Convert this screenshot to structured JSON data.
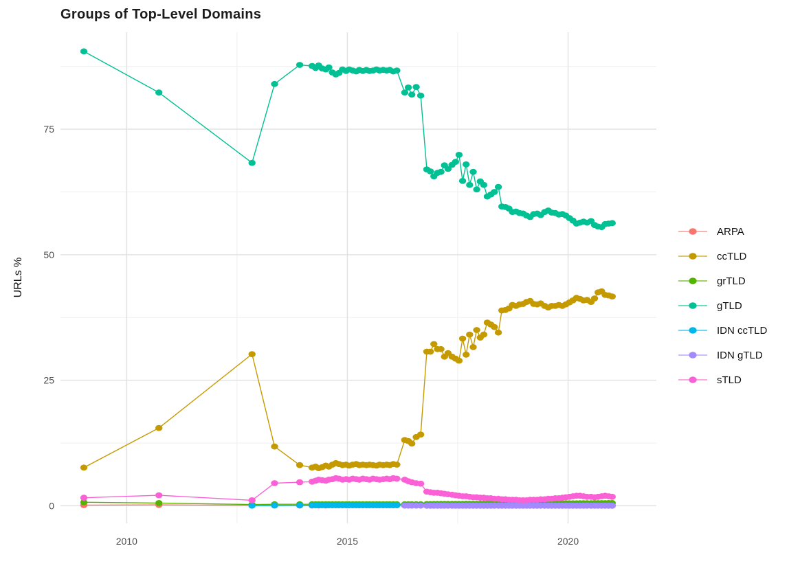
{
  "chart_data": {
    "type": "line",
    "title": "Groups of Top-Level Domains",
    "xlabel": "",
    "ylabel": "URLs %",
    "grid": true,
    "legend_position": "right",
    "xlim": [
      2008.5,
      2022.0
    ],
    "ylim": [
      -3.5,
      94.3
    ],
    "x_ticks": {
      "major": [
        2010,
        2015,
        2020
      ],
      "labels": [
        "2010",
        "2015",
        "2020"
      ],
      "minor": [
        2012.5,
        2017.5
      ]
    },
    "y_ticks": {
      "major": [
        0,
        25,
        50,
        75
      ],
      "labels": [
        "0",
        "25",
        "50",
        "75"
      ],
      "minor": [
        12.5,
        37.5,
        62.5,
        87.5
      ]
    },
    "series": [
      {
        "name": "ARPA",
        "color": "#F8766D",
        "x": [
          2009.03,
          2010.73,
          2012.84,
          2013.35,
          2013.92,
          2014.2,
          2014.35,
          2014.51
        ],
        "y": [
          0.12,
          0.18,
          0.1,
          0.08,
          0.06,
          0.05,
          0.05,
          0.05
        ]
      },
      {
        "name": "ccTLD",
        "color": "#C49A00",
        "x": [
          2009.03,
          2010.73,
          2012.84,
          2013.35,
          2013.92,
          2014.2,
          2014.28,
          2014.35,
          2014.43,
          2014.51,
          2014.58,
          2014.66,
          2014.74,
          2014.81,
          2014.89,
          2014.97,
          2015.04,
          2015.12,
          2015.2,
          2015.27,
          2015.35,
          2015.43,
          2015.5,
          2015.58,
          2015.66,
          2015.73,
          2015.81,
          2015.89,
          2015.96,
          2016.04,
          2016.12,
          2016.3,
          2016.38,
          2016.46,
          2016.56,
          2016.66,
          2016.8,
          2016.88,
          2016.96,
          2017.04,
          2017.12,
          2017.2,
          2017.28,
          2017.37,
          2017.45,
          2017.53,
          2017.61,
          2017.69,
          2017.77,
          2017.85,
          2017.93,
          2018.01,
          2018.09,
          2018.17,
          2018.25,
          2018.33,
          2018.42,
          2018.5,
          2018.58,
          2018.66,
          2018.74,
          2018.82,
          2018.9,
          2018.98,
          2019.06,
          2019.14,
          2019.22,
          2019.3,
          2019.38,
          2019.47,
          2019.55,
          2019.63,
          2019.71,
          2019.79,
          2019.87,
          2019.95,
          2020.03,
          2020.11,
          2020.19,
          2020.27,
          2020.35,
          2020.43,
          2020.52,
          2020.6,
          2020.68,
          2020.76,
          2020.84,
          2020.92,
          2021.0
        ],
        "y": [
          7.6,
          15.5,
          30.2,
          11.8,
          8.1,
          7.6,
          7.8,
          7.5,
          7.7,
          8.0,
          7.8,
          8.2,
          8.5,
          8.3,
          8.1,
          8.2,
          8.0,
          8.2,
          8.3,
          8.1,
          8.2,
          8.1,
          8.2,
          8.1,
          8.0,
          8.2,
          8.1,
          8.2,
          8.1,
          8.3,
          8.2,
          13.1,
          12.9,
          12.4,
          13.7,
          14.2,
          30.7,
          30.7,
          32.2,
          31.2,
          31.2,
          29.7,
          30.4,
          29.7,
          29.3,
          28.9,
          33.3,
          30.1,
          34.1,
          31.6,
          35.0,
          33.5,
          34.1,
          36.5,
          36.1,
          35.6,
          34.5,
          38.9,
          39.0,
          39.3,
          40.0,
          39.8,
          40.1,
          40.2,
          40.6,
          40.8,
          40.2,
          40.1,
          40.3,
          39.8,
          39.5,
          39.8,
          39.8,
          40.0,
          39.8,
          40.1,
          40.5,
          40.9,
          41.4,
          41.2,
          40.9,
          41.0,
          40.6,
          41.3,
          42.5,
          42.7,
          42.0,
          41.9,
          41.7
        ]
      },
      {
        "name": "grTLD",
        "color": "#53B400",
        "x": [
          2009.03,
          2010.73,
          2012.84,
          2013.35,
          2013.92,
          2014.2,
          2014.28,
          2014.35,
          2014.43,
          2014.51,
          2014.58,
          2014.66,
          2014.74,
          2014.81,
          2014.89,
          2014.97,
          2015.04,
          2015.12,
          2015.2,
          2015.27,
          2015.35,
          2015.43,
          2015.5,
          2015.58,
          2015.66,
          2015.73,
          2015.81,
          2015.89,
          2015.96,
          2016.04,
          2016.12,
          2016.3,
          2016.38,
          2016.46,
          2016.56,
          2016.66,
          2016.8,
          2016.88,
          2016.96,
          2017.04,
          2017.12,
          2017.2,
          2017.28,
          2017.37,
          2017.45,
          2017.53,
          2017.61,
          2017.69,
          2017.77,
          2017.85,
          2017.93,
          2018.01,
          2018.09,
          2018.17,
          2018.25,
          2018.33,
          2018.42,
          2018.5,
          2018.58,
          2018.66,
          2018.74,
          2018.82,
          2018.9,
          2018.98,
          2019.06,
          2019.14,
          2019.22,
          2019.3,
          2019.38,
          2019.47,
          2019.55,
          2019.63,
          2019.71,
          2019.79,
          2019.87,
          2019.95,
          2020.03,
          2020.11,
          2020.19,
          2020.27,
          2020.35,
          2020.43,
          2020.52,
          2020.6,
          2020.68,
          2020.76,
          2020.84,
          2020.92,
          2021.0
        ],
        "y": [
          0.7,
          0.55,
          0.25,
          0.3,
          0.3,
          0.3,
          0.3,
          0.3,
          0.3,
          0.3,
          0.3,
          0.3,
          0.3,
          0.3,
          0.3,
          0.3,
          0.3,
          0.3,
          0.3,
          0.3,
          0.3,
          0.3,
          0.3,
          0.3,
          0.3,
          0.3,
          0.3,
          0.3,
          0.3,
          0.3,
          0.3,
          0.3,
          0.3,
          0.3,
          0.3,
          0.3,
          0.35,
          0.35,
          0.36,
          0.36,
          0.37,
          0.37,
          0.38,
          0.38,
          0.38,
          0.39,
          0.39,
          0.4,
          0.4,
          0.4,
          0.4,
          0.41,
          0.41,
          0.42,
          0.42,
          0.42,
          0.43,
          0.43,
          0.43,
          0.44,
          0.44,
          0.44,
          0.45,
          0.45,
          0.45,
          0.46,
          0.46,
          0.46,
          0.47,
          0.47,
          0.47,
          0.48,
          0.48,
          0.48,
          0.49,
          0.49,
          0.5,
          0.5,
          0.5,
          0.51,
          0.51,
          0.52,
          0.52,
          0.53,
          0.53,
          0.54,
          0.54,
          0.55,
          0.55
        ]
      },
      {
        "name": "gTLD",
        "color": "#00C094",
        "x": [
          2009.03,
          2010.73,
          2012.84,
          2013.35,
          2013.92,
          2014.2,
          2014.28,
          2014.35,
          2014.43,
          2014.51,
          2014.58,
          2014.66,
          2014.74,
          2014.81,
          2014.89,
          2014.97,
          2015.04,
          2015.12,
          2015.2,
          2015.27,
          2015.35,
          2015.43,
          2015.5,
          2015.58,
          2015.66,
          2015.73,
          2015.81,
          2015.89,
          2015.96,
          2016.04,
          2016.12,
          2016.3,
          2016.38,
          2016.46,
          2016.56,
          2016.66,
          2016.8,
          2016.88,
          2016.96,
          2017.04,
          2017.12,
          2017.2,
          2017.28,
          2017.37,
          2017.45,
          2017.53,
          2017.61,
          2017.69,
          2017.77,
          2017.85,
          2017.93,
          2018.01,
          2018.09,
          2018.17,
          2018.25,
          2018.33,
          2018.42,
          2018.5,
          2018.58,
          2018.66,
          2018.74,
          2018.82,
          2018.9,
          2018.98,
          2019.06,
          2019.14,
          2019.22,
          2019.3,
          2019.38,
          2019.47,
          2019.55,
          2019.63,
          2019.71,
          2019.79,
          2019.87,
          2019.95,
          2020.03,
          2020.11,
          2020.19,
          2020.27,
          2020.35,
          2020.43,
          2020.52,
          2020.6,
          2020.68,
          2020.76,
          2020.84,
          2020.92,
          2021.0
        ],
        "y": [
          90.5,
          82.3,
          68.3,
          84.0,
          87.8,
          87.6,
          87.2,
          87.7,
          87.1,
          86.9,
          87.3,
          86.3,
          85.9,
          86.2,
          86.9,
          86.6,
          86.9,
          86.7,
          86.5,
          86.8,
          86.6,
          86.8,
          86.6,
          86.7,
          86.9,
          86.7,
          86.8,
          86.7,
          86.8,
          86.5,
          86.7,
          82.3,
          83.3,
          81.9,
          83.4,
          81.7,
          67.0,
          66.6,
          65.6,
          66.3,
          66.5,
          67.8,
          67.1,
          67.9,
          68.5,
          69.9,
          64.7,
          68.0,
          63.9,
          66.5,
          63.0,
          64.6,
          63.9,
          61.6,
          62.0,
          62.5,
          63.5,
          59.6,
          59.5,
          59.2,
          58.5,
          58.6,
          58.3,
          58.2,
          57.8,
          57.5,
          58.1,
          58.2,
          57.9,
          58.5,
          58.8,
          58.4,
          58.3,
          58.0,
          58.1,
          57.8,
          57.3,
          56.8,
          56.2,
          56.4,
          56.6,
          56.4,
          56.7,
          55.9,
          55.6,
          55.5,
          56.1,
          56.2,
          56.3
        ]
      },
      {
        "name": "IDN ccTLD",
        "color": "#00B6EB",
        "x": [
          2012.84,
          2013.35,
          2013.92,
          2014.2,
          2014.28,
          2014.35,
          2014.43,
          2014.51,
          2014.58,
          2014.66,
          2014.74,
          2014.81,
          2014.89,
          2014.97,
          2015.04,
          2015.12,
          2015.2,
          2015.27,
          2015.35,
          2015.43,
          2015.5,
          2015.58,
          2015.66,
          2015.73,
          2015.81,
          2015.89,
          2015.96,
          2016.04,
          2016.12,
          2016.3,
          2016.38,
          2016.46,
          2016.56,
          2016.66,
          2016.8,
          2016.88,
          2016.96,
          2017.04,
          2017.12,
          2017.2,
          2017.28,
          2017.37,
          2017.45,
          2017.53,
          2017.61,
          2017.69,
          2017.77,
          2017.85,
          2017.93,
          2018.01,
          2018.09,
          2018.17,
          2018.25,
          2018.33,
          2018.42,
          2018.5,
          2018.58,
          2018.66,
          2018.74,
          2018.82,
          2018.9,
          2018.98,
          2019.06,
          2019.14,
          2019.22,
          2019.3,
          2019.38,
          2019.47,
          2019.55,
          2019.63,
          2019.71,
          2019.79,
          2019.87,
          2019.95,
          2020.03,
          2020.11,
          2020.19,
          2020.27,
          2020.35,
          2020.43,
          2020.52,
          2020.6,
          2020.68,
          2020.76,
          2020.84,
          2020.92,
          2021.0
        ],
        "y": [
          0.03,
          0.05,
          0.08,
          0.1,
          0.1,
          0.1,
          0.1,
          0.1,
          0.1,
          0.1,
          0.1,
          0.1,
          0.1,
          0.1,
          0.1,
          0.1,
          0.1,
          0.1,
          0.1,
          0.1,
          0.1,
          0.1,
          0.1,
          0.1,
          0.1,
          0.1,
          0.1,
          0.1,
          0.1,
          0.08,
          0.08,
          0.08,
          0.08,
          0.08,
          0.05,
          0.05,
          0.05,
          0.05,
          0.05,
          0.05,
          0.05,
          0.05,
          0.05,
          0.05,
          0.05,
          0.05,
          0.05,
          0.05,
          0.05,
          0.05,
          0.05,
          0.05,
          0.05,
          0.05,
          0.05,
          0.05,
          0.05,
          0.05,
          0.05,
          0.05,
          0.05,
          0.05,
          0.05,
          0.05,
          0.05,
          0.05,
          0.05,
          0.05,
          0.05,
          0.05,
          0.05,
          0.05,
          0.05,
          0.05,
          0.05,
          0.05,
          0.05,
          0.05,
          0.05,
          0.05,
          0.05,
          0.05,
          0.05,
          0.05,
          0.05,
          0.05,
          0.05
        ]
      },
      {
        "name": "IDN gTLD",
        "color": "#A58AFF",
        "x": [
          2016.3,
          2016.38,
          2016.46,
          2016.56,
          2016.66,
          2016.8,
          2016.88,
          2016.96,
          2017.04,
          2017.12,
          2017.2,
          2017.28,
          2017.37,
          2017.45,
          2017.53,
          2017.61,
          2017.69,
          2017.77,
          2017.85,
          2017.93,
          2018.01,
          2018.09,
          2018.17,
          2018.25,
          2018.33,
          2018.42,
          2018.5,
          2018.58,
          2018.66,
          2018.74,
          2018.82,
          2018.9,
          2018.98,
          2019.06,
          2019.14,
          2019.22,
          2019.3,
          2019.38,
          2019.47,
          2019.55,
          2019.63,
          2019.71,
          2019.79,
          2019.87,
          2019.95,
          2020.03,
          2020.11,
          2020.19,
          2020.27,
          2020.35,
          2020.43,
          2020.52,
          2020.6,
          2020.68,
          2020.76,
          2020.84,
          2020.92,
          2021.0
        ],
        "y": [
          0.03,
          0.03,
          0.03,
          0.03,
          0.03,
          0.02,
          0.02,
          0.02,
          0.02,
          0.02,
          0.02,
          0.02,
          0.02,
          0.02,
          0.02,
          0.02,
          0.02,
          0.02,
          0.02,
          0.02,
          0.02,
          0.02,
          0.02,
          0.02,
          0.02,
          0.02,
          0.02,
          0.02,
          0.02,
          0.02,
          0.02,
          0.02,
          0.02,
          0.02,
          0.02,
          0.02,
          0.02,
          0.02,
          0.02,
          0.02,
          0.02,
          0.02,
          0.02,
          0.02,
          0.02,
          0.02,
          0.02,
          0.02,
          0.02,
          0.02,
          0.02,
          0.02,
          0.02,
          0.02,
          0.02,
          0.02,
          0.02,
          0.02
        ]
      },
      {
        "name": "sTLD",
        "color": "#FB61D7",
        "x": [
          2009.03,
          2010.73,
          2012.84,
          2013.35,
          2013.92,
          2014.2,
          2014.28,
          2014.35,
          2014.43,
          2014.51,
          2014.58,
          2014.66,
          2014.74,
          2014.81,
          2014.89,
          2014.97,
          2015.04,
          2015.12,
          2015.2,
          2015.27,
          2015.35,
          2015.43,
          2015.5,
          2015.58,
          2015.66,
          2015.73,
          2015.81,
          2015.89,
          2015.96,
          2016.04,
          2016.12,
          2016.3,
          2016.38,
          2016.46,
          2016.56,
          2016.66,
          2016.8,
          2016.88,
          2016.96,
          2017.04,
          2017.12,
          2017.2,
          2017.28,
          2017.37,
          2017.45,
          2017.53,
          2017.61,
          2017.69,
          2017.77,
          2017.85,
          2017.93,
          2018.01,
          2018.09,
          2018.17,
          2018.25,
          2018.33,
          2018.42,
          2018.5,
          2018.58,
          2018.66,
          2018.74,
          2018.82,
          2018.9,
          2018.98,
          2019.06,
          2019.14,
          2019.22,
          2019.3,
          2019.38,
          2019.47,
          2019.55,
          2019.63,
          2019.71,
          2019.79,
          2019.87,
          2019.95,
          2020.03,
          2020.11,
          2020.19,
          2020.27,
          2020.35,
          2020.43,
          2020.52,
          2020.6,
          2020.68,
          2020.76,
          2020.84,
          2020.92,
          2021.0
        ],
        "y": [
          1.6,
          2.1,
          1.1,
          4.5,
          4.7,
          4.8,
          5.0,
          5.2,
          5.1,
          5.0,
          5.2,
          5.3,
          5.5,
          5.4,
          5.2,
          5.3,
          5.2,
          5.4,
          5.3,
          5.2,
          5.4,
          5.3,
          5.2,
          5.4,
          5.3,
          5.2,
          5.3,
          5.4,
          5.3,
          5.5,
          5.4,
          5.2,
          4.9,
          4.7,
          4.5,
          4.4,
          2.8,
          2.7,
          2.6,
          2.6,
          2.5,
          2.4,
          2.3,
          2.2,
          2.1,
          2.0,
          1.9,
          1.9,
          1.8,
          1.7,
          1.7,
          1.6,
          1.6,
          1.5,
          1.5,
          1.4,
          1.4,
          1.3,
          1.3,
          1.2,
          1.2,
          1.2,
          1.1,
          1.1,
          1.1,
          1.2,
          1.2,
          1.2,
          1.3,
          1.3,
          1.4,
          1.4,
          1.5,
          1.5,
          1.6,
          1.7,
          1.8,
          1.9,
          2.0,
          2.0,
          1.9,
          1.8,
          1.8,
          1.7,
          1.8,
          1.9,
          2.0,
          1.9,
          1.8
        ]
      }
    ],
    "legend": {
      "position": "right",
      "items": [
        "ARPA",
        "ccTLD",
        "grTLD",
        "gTLD",
        "IDN ccTLD",
        "IDN gTLD",
        "sTLD"
      ]
    },
    "colors": {
      "grid_major": "#E2E2E2",
      "grid_minor": "#F0F0F0",
      "tick_text": "#4e4e4e",
      "title_text": "#1c1c1c"
    }
  }
}
